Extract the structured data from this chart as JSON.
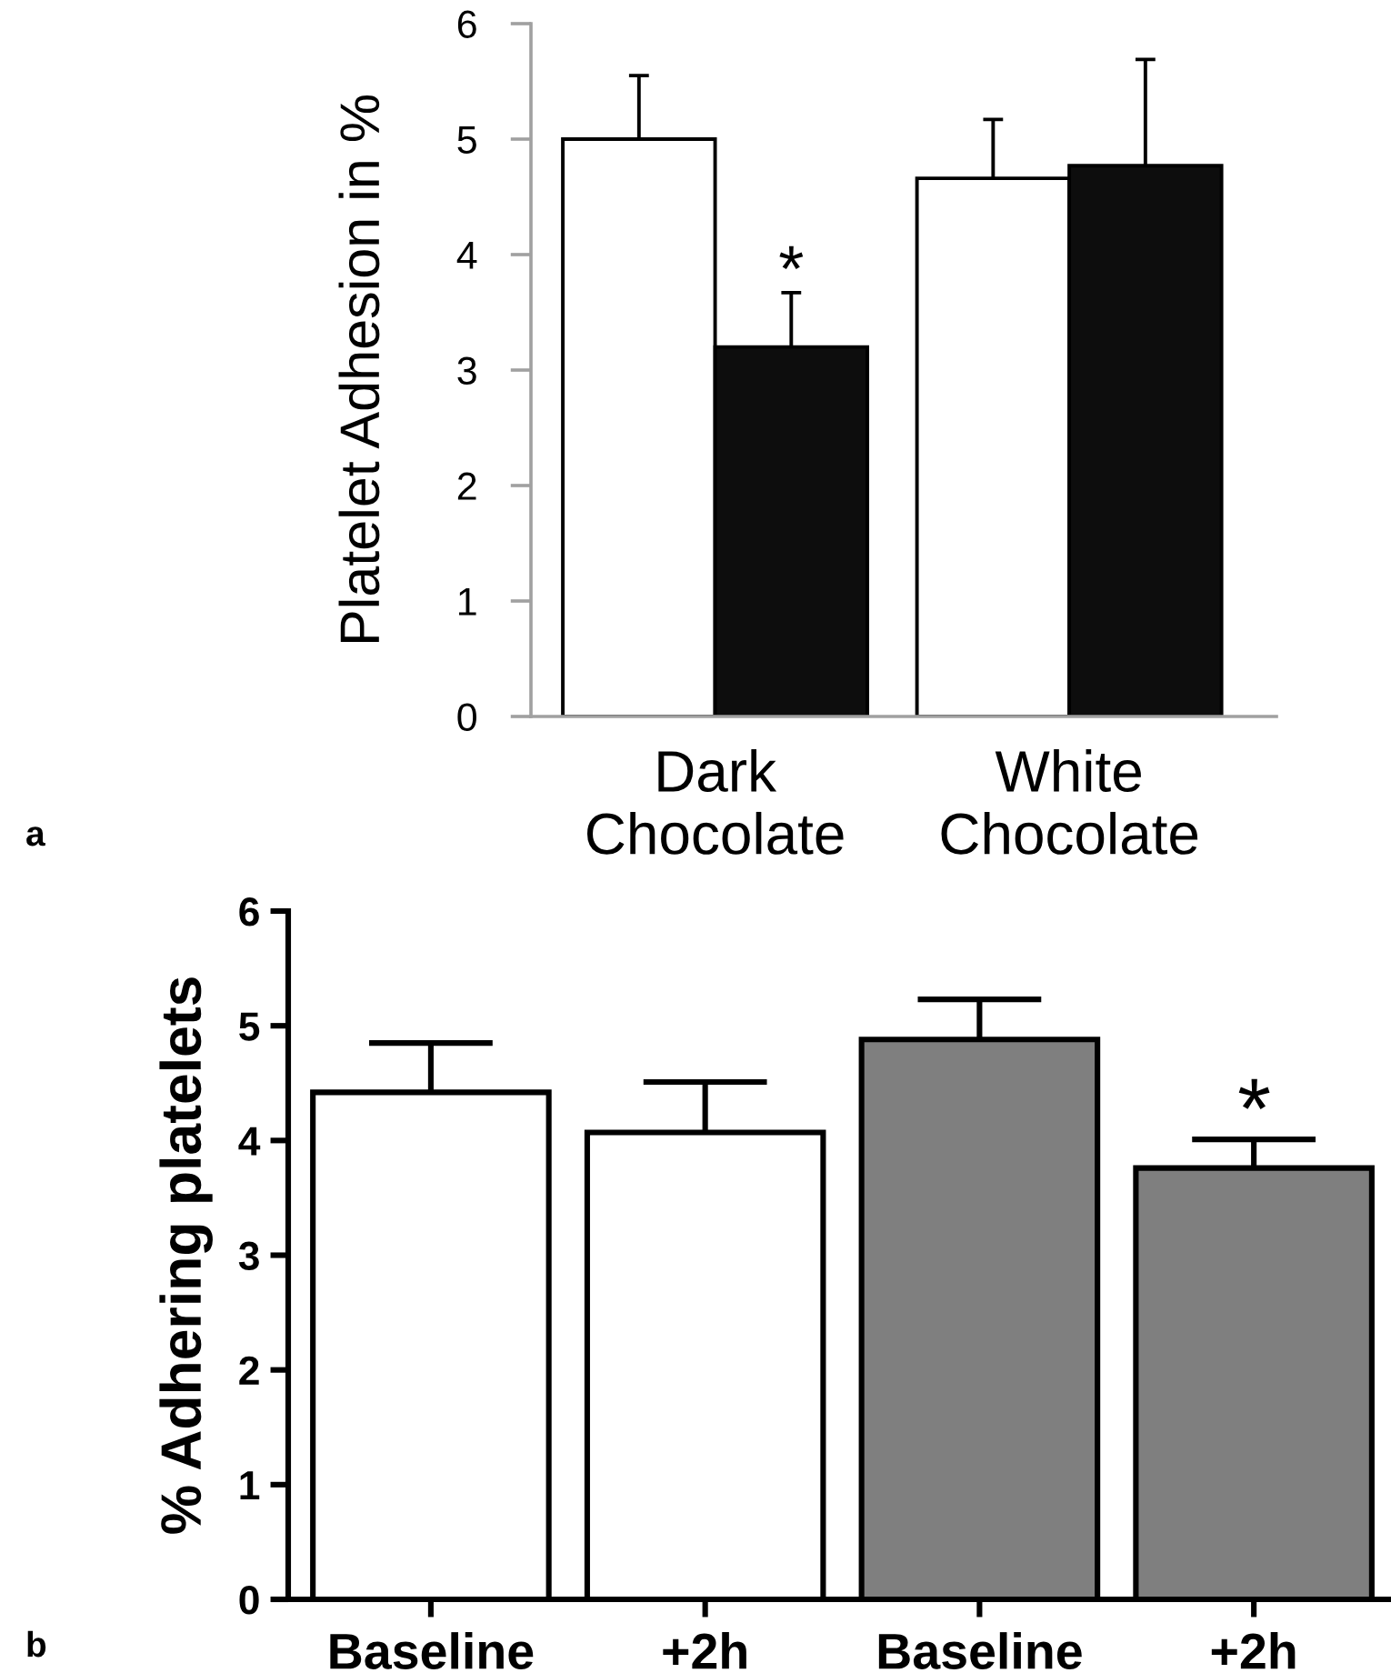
{
  "chart_data": [
    {
      "type": "bar",
      "categories": [
        "Dark\nChocolate",
        "White\nChocolate"
      ],
      "ylabel": "Platelet Adhesion in %",
      "ylim": [
        0,
        6
      ],
      "yticks": [
        0,
        1,
        2,
        3,
        4,
        5,
        6
      ],
      "series": [
        {
          "color": "#ffffff",
          "values": [
            5.0,
            4.66
          ],
          "errors": [
            [
              5.0,
              5.55
            ],
            [
              4.66,
              5.17
            ]
          ]
        },
        {
          "color": "#0d0d0d",
          "values": [
            3.2,
            4.77
          ],
          "errors": [
            [
              3.2,
              3.67
            ],
            [
              4.77,
              5.69
            ]
          ]
        }
      ],
      "annotations": [
        "a",
        {
          "text": "*",
          "x": "Dark\nChocolate",
          "y": 4.0
        }
      ]
    },
    {
      "type": "bar",
      "categories": [
        "Baseline",
        "+2h",
        "Baseline",
        "+2h"
      ],
      "ylabel": "% Adhering platelets",
      "ylim": [
        0,
        6
      ],
      "yticks": [
        0,
        1,
        2,
        3,
        4,
        5,
        6
      ],
      "values": [
        4.42,
        4.07,
        4.88,
        3.76
      ],
      "colors": [
        "#ffffff",
        "#ffffff",
        "#7f7f7f",
        "#7f7f7f"
      ],
      "errors": [
        [
          4.42,
          4.85
        ],
        [
          4.07,
          4.51
        ],
        [
          4.88,
          5.23
        ],
        [
          3.76,
          4.01
        ]
      ],
      "annotations": [
        "b",
        "*"
      ]
    }
  ]
}
